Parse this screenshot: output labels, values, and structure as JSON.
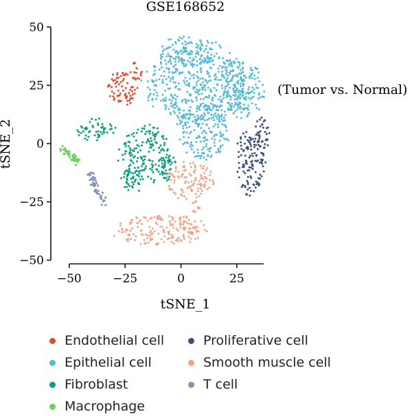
{
  "chart_data": {
    "type": "scatter",
    "title": "GSE168652",
    "annotation": "(Tumor vs. Normal)",
    "xlabel": "tSNE_1",
    "ylabel": "tSNE_2",
    "xlim": [
      -57,
      45
    ],
    "ylim": [
      -51,
      51
    ],
    "xticks": [
      -50,
      -25,
      0,
      25
    ],
    "yticks": [
      50,
      25,
      0,
      -25,
      -50
    ],
    "xtick_labels": [
      "−50",
      "−25",
      "0",
      "25"
    ],
    "ytick_labels": [
      "50",
      "25",
      "0",
      "−25",
      "−50"
    ],
    "grid": false,
    "legend_position": "bottom",
    "series": [
      {
        "name": "Endothelial cell",
        "color": "#e04b35",
        "clusters": [
          {
            "cx": -26,
            "cy": 24,
            "rx": 8,
            "ry": 8
          },
          {
            "cx": -20,
            "cy": 31,
            "rx": 3,
            "ry": 4
          }
        ]
      },
      {
        "name": "Epithelial cell",
        "color": "#55bad6",
        "clusters": [
          {
            "cx": 8,
            "cy": 25,
            "rx": 25,
            "ry": 17
          },
          {
            "cx": 4,
            "cy": 40,
            "rx": 14,
            "ry": 7
          },
          {
            "cx": 10,
            "cy": 5,
            "rx": 12,
            "ry": 12
          },
          {
            "cx": 28,
            "cy": 23,
            "rx": 10,
            "ry": 12
          }
        ]
      },
      {
        "name": "Fibroblast",
        "color": "#0e9e7f",
        "clusters": [
          {
            "cx": -38,
            "cy": 6,
            "rx": 9,
            "ry": 5
          },
          {
            "cx": -16,
            "cy": -5,
            "rx": 12,
            "ry": 13
          },
          {
            "cx": -22,
            "cy": -16,
            "rx": 6,
            "ry": 5
          },
          {
            "cx": -6,
            "cy": -10,
            "rx": 4,
            "ry": 7
          }
        ]
      },
      {
        "name": "Macrophage",
        "color": "#6dd160",
        "clusters": [
          {
            "line": [
              [
                -53,
                -2
              ],
              [
                -46,
                -8
              ]
            ],
            "w": 1.2
          }
        ]
      },
      {
        "name": "Proliferative cell",
        "color": "#3b4f80",
        "clusters": [
          {
            "cx": 31,
            "cy": -8,
            "rx": 7,
            "ry": 15
          },
          {
            "cx": 36,
            "cy": 3,
            "rx": 4,
            "ry": 8
          }
        ]
      },
      {
        "name": "Smooth muscle cell",
        "color": "#f0a589",
        "clusters": [
          {
            "cx": 4,
            "cy": -16,
            "rx": 11,
            "ry": 9
          },
          {
            "cx": -9,
            "cy": -37,
            "rx": 22,
            "ry": 7
          },
          {
            "cx": 7,
            "cy": -27,
            "rx": 3,
            "ry": 3
          }
        ]
      },
      {
        "name": "T cell",
        "color": "#8394b9",
        "clusters": [
          {
            "line": [
              [
                -41,
                -13
              ],
              [
                -34,
                -26
              ]
            ],
            "w": 1.4
          }
        ]
      }
    ]
  }
}
